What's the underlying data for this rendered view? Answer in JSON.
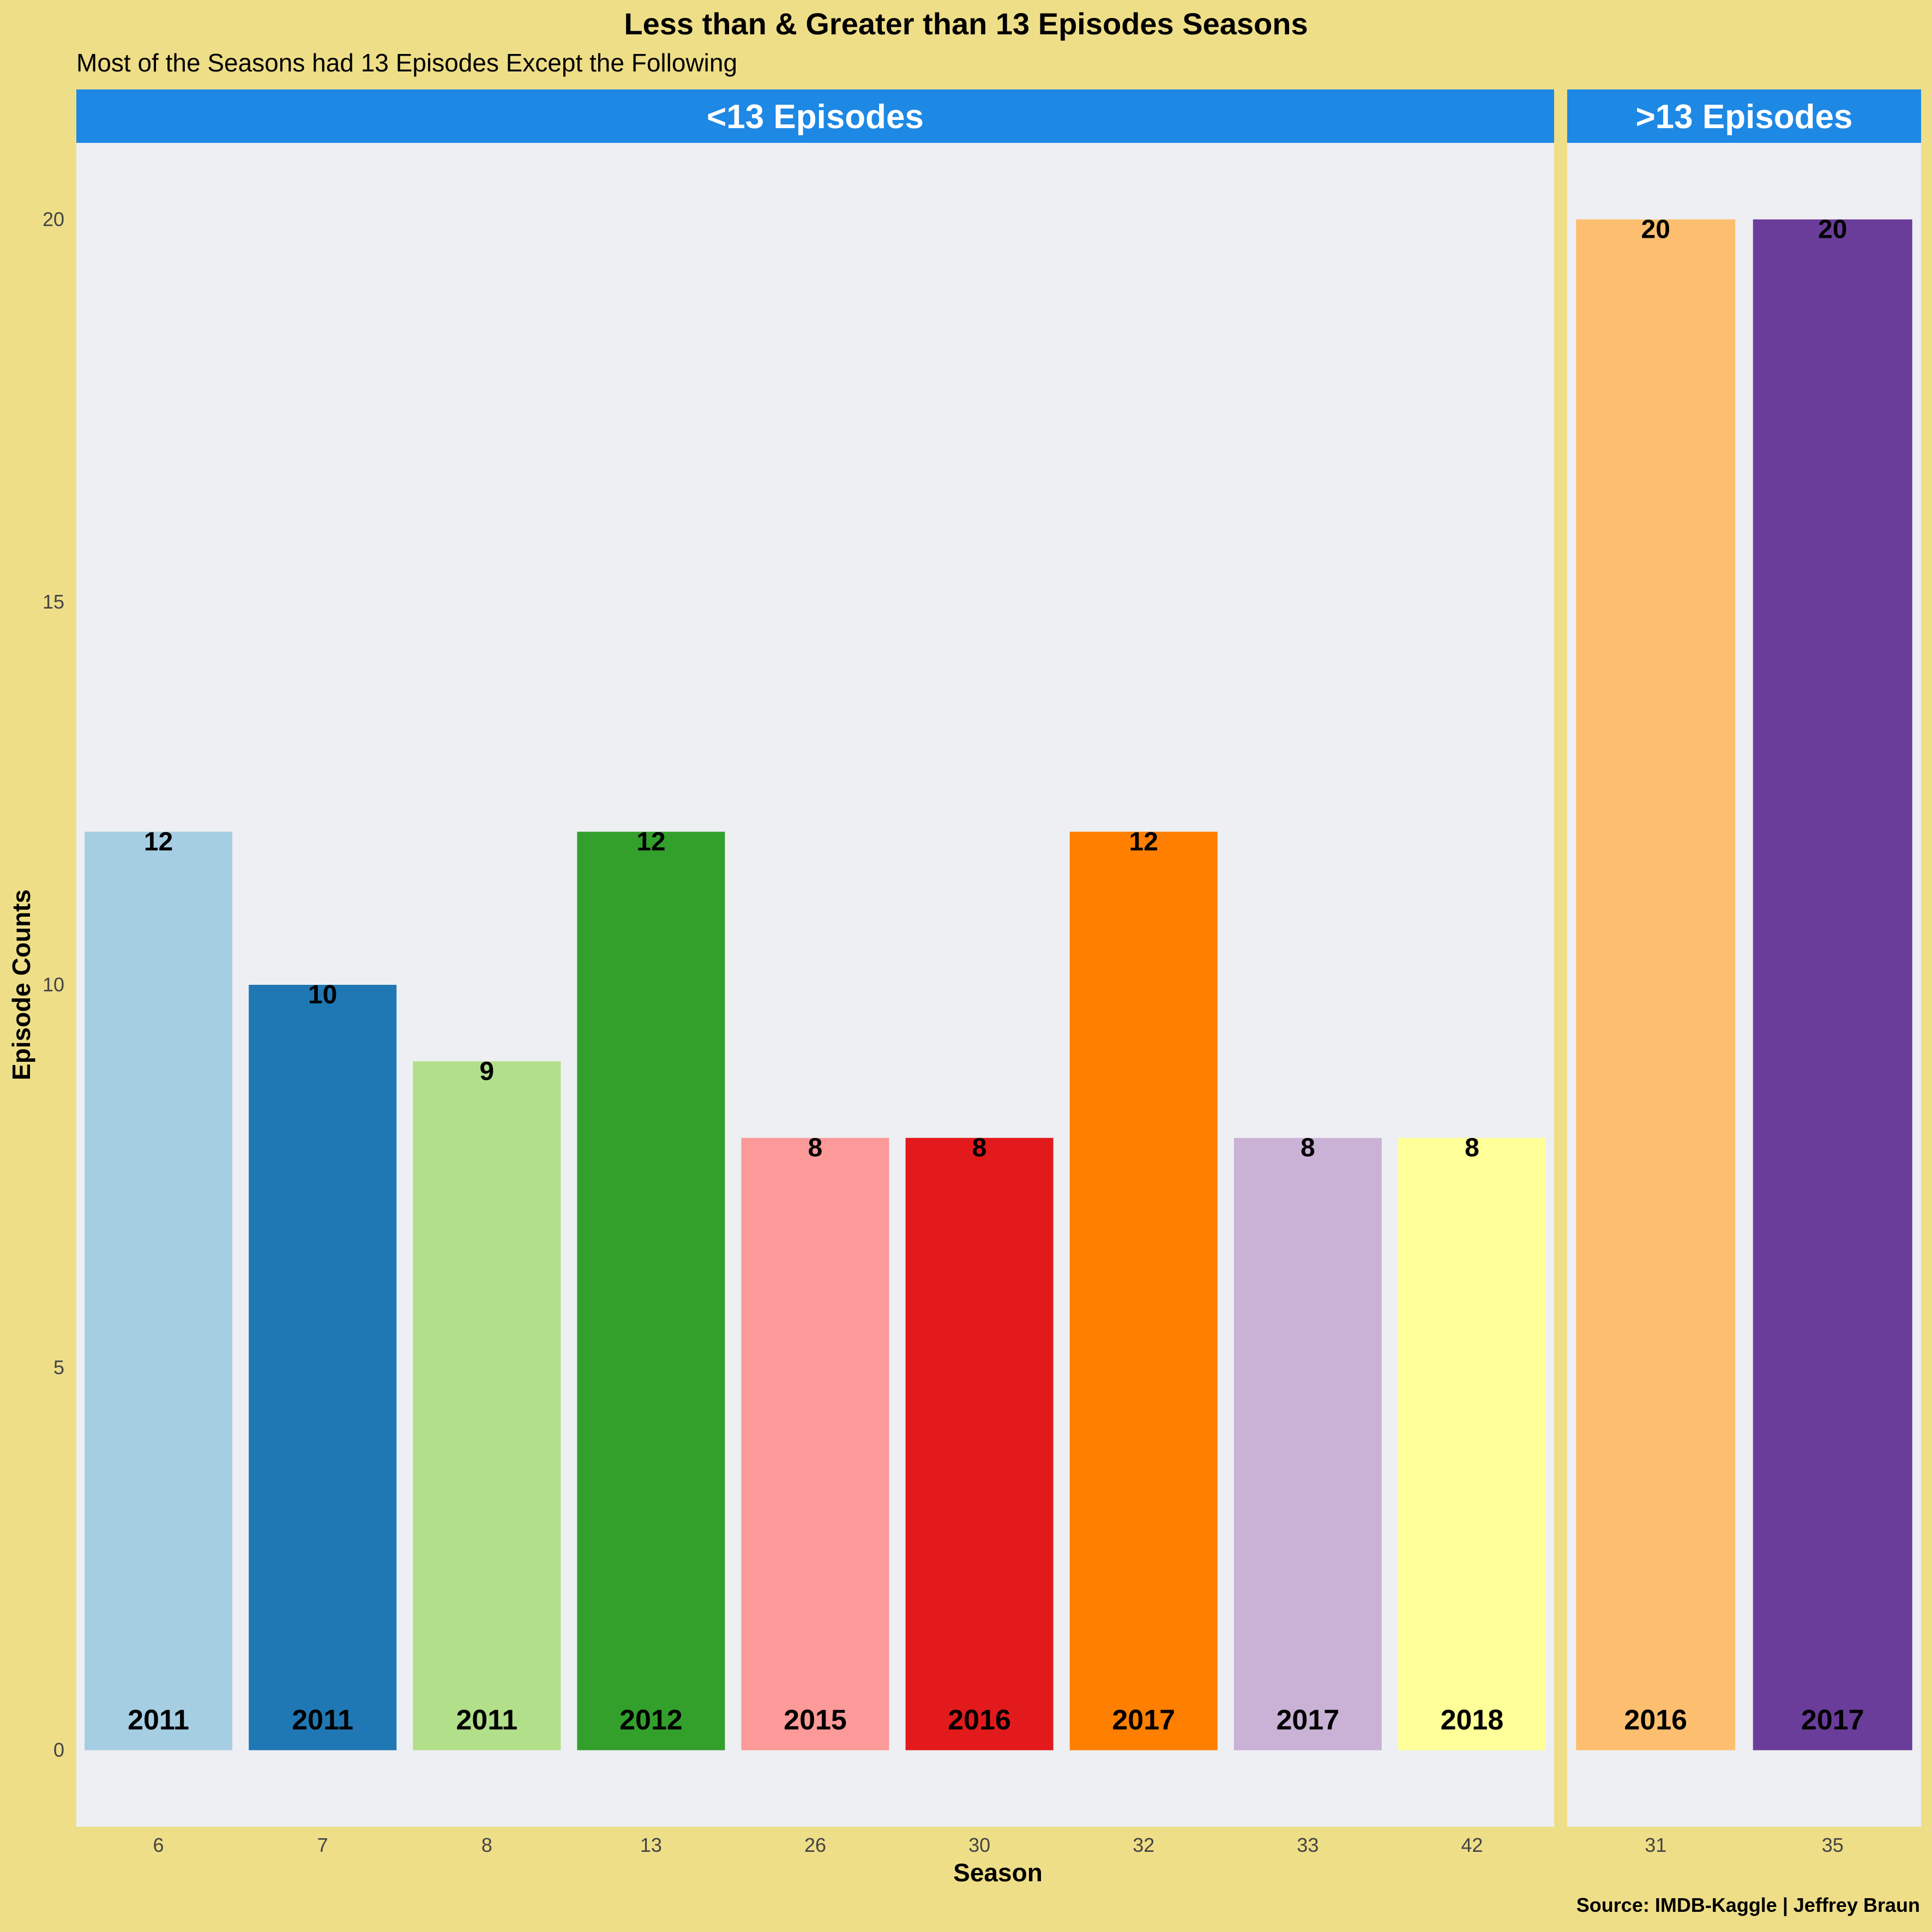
{
  "chart_data": {
    "type": "bar",
    "title": "Less than & Greater than 13 Episodes Seasons",
    "subtitle": "Most of the Seasons had 13 Episodes Except the Following",
    "xlabel": "Season",
    "ylabel": "Episode Counts",
    "caption": "Source: IMDB-Kaggle | Jeffrey Braun",
    "ylim": [
      -1,
      21
    ],
    "y_ticks": [
      "0",
      "5",
      "10",
      "15",
      "20"
    ],
    "panels": [
      {
        "label": "<13 Episodes",
        "categories": [
          "6",
          "7",
          "8",
          "13",
          "26",
          "30",
          "32",
          "33",
          "42"
        ],
        "values": [
          12,
          10,
          9,
          12,
          8,
          8,
          12,
          8,
          8
        ],
        "years": [
          "2011",
          "2011",
          "2011",
          "2012",
          "2015",
          "2016",
          "2017",
          "2017",
          "2018"
        ],
        "colors": [
          "#A6CEE3",
          "#1F78B4",
          "#B2DF8A",
          "#33A02C",
          "#FB9A99",
          "#E31A1C",
          "#FF7F00",
          "#CAB2D6",
          "#FFFF99"
        ]
      },
      {
        "label": ">13 Episodes",
        "categories": [
          "31",
          "35"
        ],
        "values": [
          20,
          20
        ],
        "years": [
          "2016",
          "2017"
        ],
        "colors": [
          "#FDBF6F",
          "#6A3D9A"
        ]
      }
    ],
    "strip_color": "#1E88E5",
    "background_color": "#EEDE88",
    "panel_color": "#EEEFF2"
  }
}
